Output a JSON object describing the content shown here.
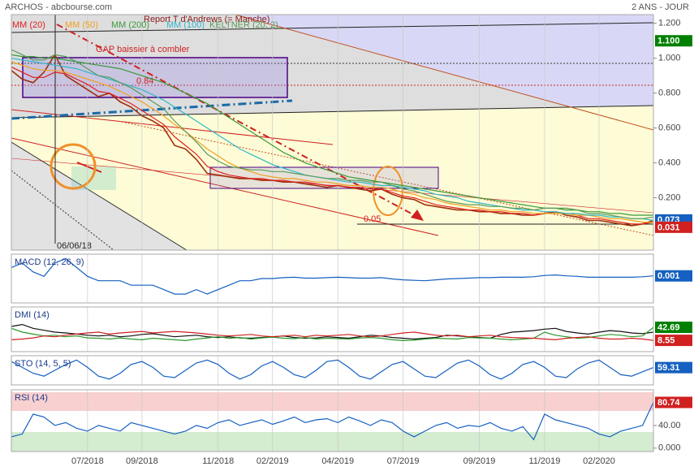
{
  "header": {
    "title": "ARCHOS - abcbourse.com",
    "period": "2 ANS - JOUR"
  },
  "annotations": [
    "Report T d'Andrews (= Manche)",
    "GAP baissier à combler",
    "0.84",
    "0.05",
    "06/06/18"
  ],
  "chart_data": [
    {
      "type": "line",
      "color": "#a0300a",
      "values": [
        0.93,
        0.88,
        0.86,
        0.92,
        1.02,
        0.9,
        0.86,
        0.82,
        0.78,
        0.8,
        0.75,
        0.72,
        0.67,
        0.64,
        0.6,
        0.5,
        0.48,
        0.42,
        0.34,
        0.33,
        0.32,
        0.31,
        0.31,
        0.3,
        0.3,
        0.29,
        0.29,
        0.28,
        0.27,
        0.26,
        0.27,
        0.26,
        0.25,
        0.24,
        0.25,
        0.22,
        0.2,
        0.19,
        0.16,
        0.15,
        0.14,
        0.13,
        0.13,
        0.12,
        0.12,
        0.11,
        0.11,
        0.1,
        0.1,
        0.11,
        0.12,
        0.1,
        0.09,
        0.07,
        0.07,
        0.06,
        0.05,
        0.04,
        0.05,
        0.07
      ],
      "series": [
        {
          "name": "MM (20)",
          "color": "#e02020",
          "values": [
            0.95,
            0.92,
            0.89,
            0.89,
            0.92,
            0.91,
            0.88,
            0.85,
            0.81,
            0.8,
            0.77,
            0.74,
            0.7,
            0.66,
            0.62,
            0.55,
            0.5,
            0.45,
            0.38,
            0.35,
            0.33,
            0.32,
            0.31,
            0.31,
            0.3,
            0.3,
            0.29,
            0.29,
            0.28,
            0.27,
            0.27,
            0.26,
            0.26,
            0.25,
            0.25,
            0.23,
            0.21,
            0.2,
            0.18,
            0.16,
            0.15,
            0.14,
            0.13,
            0.13,
            0.12,
            0.12,
            0.11,
            0.11,
            0.1,
            0.11,
            0.11,
            0.11,
            0.1,
            0.08,
            0.08,
            0.07,
            0.06,
            0.05,
            0.05,
            0.06
          ]
        },
        {
          "name": "MM (50)",
          "color": "#f0a020",
          "values": [
            0.98,
            0.96,
            0.94,
            0.93,
            0.93,
            0.92,
            0.9,
            0.88,
            0.86,
            0.84,
            0.81,
            0.78,
            0.75,
            0.71,
            0.67,
            0.62,
            0.58,
            0.53,
            0.48,
            0.44,
            0.4,
            0.37,
            0.35,
            0.33,
            0.32,
            0.31,
            0.31,
            0.3,
            0.29,
            0.29,
            0.28,
            0.27,
            0.27,
            0.26,
            0.26,
            0.25,
            0.23,
            0.22,
            0.2,
            0.19,
            0.17,
            0.16,
            0.15,
            0.14,
            0.13,
            0.13,
            0.12,
            0.12,
            0.11,
            0.11,
            0.11,
            0.11,
            0.1,
            0.1,
            0.09,
            0.08,
            0.08,
            0.07,
            0.06,
            0.06
          ]
        },
        {
          "name": "MM (200)",
          "color": "#3a9a3a",
          "values": [
            1.02,
            1.01,
            1.01,
            1.0,
            1.0,
            0.99,
            0.98,
            0.97,
            0.96,
            0.95,
            0.94,
            0.92,
            0.9,
            0.88,
            0.86,
            0.83,
            0.8,
            0.77,
            0.74,
            0.7,
            0.66,
            0.62,
            0.58,
            0.54,
            0.5,
            0.46,
            0.43,
            0.4,
            0.38,
            0.36,
            0.34,
            0.32,
            0.31,
            0.3,
            0.29,
            0.28,
            0.27,
            0.26,
            0.25,
            0.24,
            0.23,
            0.22,
            0.21,
            0.2,
            0.19,
            0.18,
            0.17,
            0.16,
            0.15,
            0.14,
            0.14,
            0.13,
            0.13,
            0.12,
            0.12,
            0.11,
            0.11,
            0.1,
            0.1,
            0.1
          ]
        },
        {
          "name": "MM (100)",
          "color": "#30b8c8",
          "values": [
            1.0,
            0.99,
            0.98,
            0.97,
            0.96,
            0.95,
            0.94,
            0.92,
            0.9,
            0.88,
            0.86,
            0.84,
            0.82,
            0.79,
            0.76,
            0.72,
            0.68,
            0.64,
            0.6,
            0.56,
            0.52,
            0.48,
            0.45,
            0.42,
            0.39,
            0.37,
            0.35,
            0.33,
            0.32,
            0.31,
            0.3,
            0.29,
            0.29,
            0.28,
            0.27,
            0.27,
            0.26,
            0.25,
            0.24,
            0.22,
            0.21,
            0.2,
            0.18,
            0.17,
            0.16,
            0.15,
            0.14,
            0.13,
            0.13,
            0.12,
            0.12,
            0.11,
            0.11,
            0.1,
            0.1,
            0.09,
            0.09,
            0.08,
            0.08,
            0.07
          ]
        },
        {
          "name": "KELTNER (20, 2)",
          "color": "#5a9a5a",
          "values": [
            1.05,
            1.02,
            0.99,
            0.99,
            1.02,
            1.01,
            0.98,
            0.94,
            0.9,
            0.89,
            0.86,
            0.83,
            0.79,
            0.75,
            0.71,
            0.64,
            0.58,
            0.52,
            0.45,
            0.41,
            0.38,
            0.37,
            0.36,
            0.36,
            0.35,
            0.35,
            0.34,
            0.33,
            0.32,
            0.31,
            0.31,
            0.3,
            0.3,
            0.29,
            0.29,
            0.27,
            0.25,
            0.24,
            0.22,
            0.2,
            0.18,
            0.17,
            0.16,
            0.16,
            0.15,
            0.15,
            0.14,
            0.14,
            0.13,
            0.14,
            0.14,
            0.14,
            0.13,
            0.11,
            0.11,
            0.1,
            0.09,
            0.08,
            0.08,
            0.09
          ]
        }
      ],
      "ylim": [
        -0.1,
        1.25
      ],
      "yticks": [
        {
          "value": 1.2,
          "label": "1.200"
        },
        {
          "value": 1.0,
          "label": "1.000"
        },
        {
          "value": 0.8,
          "label": "0.800"
        },
        {
          "value": 0.6,
          "label": "0.600"
        },
        {
          "value": 0.4,
          "label": "0.400"
        },
        {
          "value": 0.2,
          "label": "0.200"
        }
      ],
      "last_values": [
        {
          "value": 1.1,
          "label": "1.100",
          "color": "#008000"
        },
        {
          "value": 0.073,
          "label": "0.073",
          "color": "#1560c0"
        },
        {
          "value": 0.031,
          "label": "0.031",
          "color": "#d02020"
        }
      ]
    },
    {
      "type": "line",
      "title": "MACD (12, 26, 9)",
      "ylim": [
        -0.06,
        0.05
      ],
      "series": [
        {
          "color": "#1560c0",
          "values": [
            0.02,
            0.03,
            0.01,
            0.0,
            0.03,
            0.04,
            0.02,
            0.0,
            -0.01,
            -0.01,
            -0.01,
            -0.02,
            -0.02,
            -0.02,
            -0.03,
            -0.04,
            -0.04,
            -0.03,
            -0.04,
            -0.03,
            -0.02,
            -0.01,
            -0.01,
            -0.005,
            -0.005,
            -0.003,
            -0.002,
            -0.004,
            -0.004,
            -0.003,
            -0.002,
            -0.003,
            -0.004,
            -0.004,
            -0.003,
            -0.006,
            -0.008,
            -0.009,
            -0.01,
            -0.008,
            -0.006,
            -0.005,
            -0.004,
            -0.003,
            -0.003,
            -0.002,
            -0.002,
            -0.002,
            -0.001,
            0.002,
            0.003,
            0.001,
            0.0,
            -0.002,
            -0.002,
            -0.002,
            -0.002,
            -0.002,
            -0.001,
            0.001
          ]
        }
      ],
      "last_values": [
        {
          "value": 0.001,
          "label": "0.001",
          "color": "#1560c0"
        }
      ]
    },
    {
      "type": "line",
      "title": "DMI (14)",
      "ylim": [
        -21,
        96
      ],
      "series": [
        {
          "color": "#111111",
          "values": [
            45,
            50,
            40,
            35,
            30,
            28,
            25,
            22,
            20,
            22,
            18,
            20,
            24,
            26,
            22,
            18,
            20,
            22,
            18,
            16,
            18,
            15,
            14,
            16,
            18,
            20,
            16,
            14,
            15,
            18,
            16,
            14,
            18,
            22,
            20,
            16,
            14,
            12,
            14,
            16,
            22,
            20,
            18,
            16,
            14,
            24,
            30,
            32,
            34,
            38,
            40,
            32,
            28,
            25,
            30,
            34,
            32,
            28,
            26,
            30
          ]
        },
        {
          "color": "#2a9a2a",
          "values": [
            40,
            30,
            25,
            20,
            22,
            18,
            20,
            15,
            14,
            12,
            15,
            12,
            10,
            14,
            12,
            10,
            8,
            12,
            15,
            18,
            14,
            16,
            12,
            15,
            17,
            14,
            13,
            16,
            12,
            14,
            13,
            12,
            15,
            16,
            14,
            10,
            8,
            9,
            12,
            14,
            13,
            12,
            16,
            15,
            14,
            12,
            10,
            12,
            14,
            30,
            22,
            18,
            14,
            16,
            20,
            24,
            22,
            18,
            20,
            42.69
          ]
        },
        {
          "color": "#d02020",
          "values": [
            10,
            12,
            15,
            20,
            18,
            22,
            25,
            28,
            30,
            25,
            28,
            30,
            32,
            28,
            30,
            32,
            30,
            28,
            25,
            22,
            20,
            22,
            24,
            20,
            18,
            20,
            22,
            18,
            22,
            20,
            22,
            24,
            20,
            18,
            20,
            24,
            28,
            30,
            26,
            22,
            20,
            22,
            18,
            20,
            22,
            18,
            16,
            15,
            14,
            12,
            10,
            14,
            16,
            18,
            14,
            12,
            12,
            14,
            12,
            8.55
          ]
        }
      ],
      "last_values": [
        {
          "value": 42.69,
          "label": "42.69",
          "color": "#008000"
        },
        {
          "value": 8.55,
          "label": "8.55",
          "color": "#d02020"
        }
      ]
    },
    {
      "type": "line",
      "title": "STO (14, 5, 5)",
      "ylim": [
        0,
        100
      ],
      "series": [
        {
          "color": "#1560c0",
          "values": [
            80,
            60,
            40,
            30,
            50,
            70,
            85,
            60,
            30,
            20,
            40,
            70,
            80,
            60,
            30,
            25,
            50,
            75,
            85,
            70,
            40,
            20,
            35,
            65,
            80,
            60,
            35,
            25,
            50,
            80,
            85,
            60,
            30,
            20,
            45,
            70,
            80,
            55,
            30,
            25,
            50,
            75,
            85,
            65,
            35,
            20,
            40,
            70,
            80,
            60,
            30,
            25,
            55,
            75,
            85,
            60,
            35,
            30,
            45,
            59.31
          ]
        }
      ],
      "last_values": [
        {
          "value": 59.31,
          "label": "59.31",
          "color": "#1560c0"
        }
      ]
    },
    {
      "type": "line",
      "title": "RSI (14)",
      "ylim": [
        -6,
        103
      ],
      "categories": [
        null,
        null,
        null,
        null,
        null,
        null,
        null,
        "07/2018",
        null,
        null,
        null,
        null,
        "09/2018",
        null,
        null,
        null,
        null,
        null,
        null,
        "11/2018",
        null,
        null,
        null,
        null,
        "02/2019",
        null,
        null,
        null,
        null,
        null,
        "04/2019",
        null,
        null,
        null,
        null,
        null,
        "07/2019",
        null,
        null,
        null,
        null,
        null,
        null,
        "09/2019",
        null,
        null,
        null,
        null,
        null,
        "11/2019",
        null,
        null,
        null,
        null,
        "02/2020",
        null,
        null,
        null,
        null,
        null
      ],
      "series": [
        {
          "color": "#1560c0",
          "values": [
            20,
            25,
            60,
            55,
            40,
            45,
            35,
            30,
            40,
            35,
            30,
            45,
            40,
            35,
            30,
            25,
            30,
            40,
            35,
            45,
            50,
            40,
            45,
            50,
            42,
            48,
            55,
            45,
            50,
            52,
            45,
            55,
            48,
            40,
            50,
            45,
            30,
            20,
            30,
            40,
            45,
            35,
            40,
            38,
            45,
            35,
            30,
            38,
            15,
            60,
            50,
            45,
            40,
            35,
            25,
            20,
            30,
            35,
            40,
            80.74
          ]
        }
      ],
      "yticks": [
        {
          "value": 40,
          "label": "40.00"
        },
        {
          "value": 0,
          "label": "0.000"
        }
      ],
      "last_values": [
        {
          "value": 80.74,
          "label": "80.74",
          "color": "#d02020"
        }
      ]
    }
  ]
}
